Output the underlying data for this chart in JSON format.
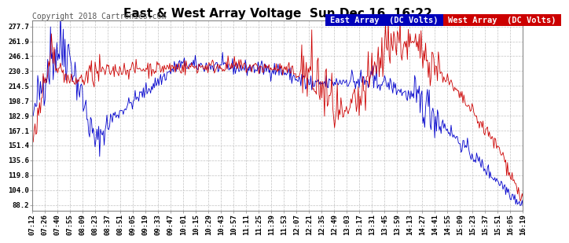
{
  "title": "East & West Array Voltage  Sun Dec 16  16:22",
  "copyright": "Copyright 2018 Cartronics.com",
  "legend_east": "East Array  (DC Volts)",
  "legend_west": "West Array  (DC Volts)",
  "east_color": "#0000cc",
  "west_color": "#cc0000",
  "east_legend_bg": "#0000bb",
  "west_legend_bg": "#cc0000",
  "background_color": "#ffffff",
  "plot_bg_color": "#ffffff",
  "grid_color": "#bbbbbb",
  "yticks": [
    88.2,
    104.0,
    119.8,
    135.6,
    151.4,
    167.1,
    182.9,
    198.7,
    214.5,
    230.3,
    246.1,
    261.9,
    277.7
  ],
  "ymin": 82.0,
  "ymax": 284.0,
  "xtick_labels": [
    "07:12",
    "07:26",
    "07:40",
    "07:55",
    "08:09",
    "08:23",
    "08:37",
    "08:51",
    "09:05",
    "09:19",
    "09:33",
    "09:47",
    "10:01",
    "10:15",
    "10:29",
    "10:43",
    "10:57",
    "11:11",
    "11:25",
    "11:39",
    "11:53",
    "12:07",
    "12:21",
    "12:35",
    "12:49",
    "13:03",
    "13:17",
    "13:31",
    "13:45",
    "13:59",
    "14:13",
    "14:27",
    "14:41",
    "14:55",
    "15:09",
    "15:23",
    "15:37",
    "15:51",
    "16:05",
    "16:19"
  ],
  "title_fontsize": 11,
  "copyright_fontsize": 7,
  "tick_fontsize": 6.5,
  "legend_fontsize": 7.5
}
